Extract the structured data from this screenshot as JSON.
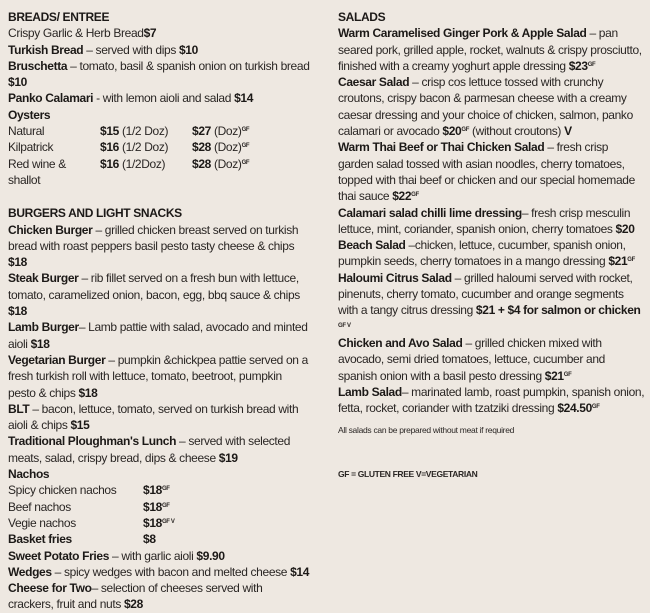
{
  "left": {
    "breads": {
      "heading": "BREADS/ ENTREE",
      "items": [
        {
          "name": "",
          "desc": "Crispy Garlic & Herb Bread",
          "price": "$7",
          "tag": ""
        },
        {
          "name": "Turkish Bread",
          "desc": " – served with dips ",
          "price": "$10",
          "tag": ""
        },
        {
          "name": "Bruschetta",
          "desc": " – tomato, basil & spanish onion on turkish bread ",
          "price": "$10",
          "tag": ""
        },
        {
          "name": "Panko Calamari",
          "desc": " - with lemon aioli and salad ",
          "price": "$14",
          "tag": ""
        }
      ],
      "oysters": {
        "heading": "Oysters",
        "rows": [
          {
            "name": "Natural",
            "half_price": "$15",
            "half_unit": " (1/2 Doz)",
            "doz_price": "$27",
            "doz_unit": " (Doz)",
            "tag": "GF"
          },
          {
            "name": "Kilpatrick",
            "half_price": "$16",
            "half_unit": " (1/2 Doz)",
            "doz_price": "$28",
            "doz_unit": " (Doz)",
            "tag": "GF"
          },
          {
            "name": "Red wine & shallot",
            "half_price": "$16",
            "half_unit": " (1/2Doz)",
            "doz_price": "$28",
            "doz_unit": " (Doz)",
            "tag": "GF"
          }
        ]
      }
    },
    "burgers": {
      "heading": "BURGERS AND LIGHT SNACKS",
      "items": [
        {
          "name": "Chicken Burger",
          "desc": " – grilled chicken breast served on turkish bread with roast peppers basil pesto tasty cheese & chips ",
          "price": "$18",
          "tag": ""
        },
        {
          "name": "Steak Burger",
          "desc": " – rib fillet served on a fresh bun with lettuce, tomato, caramelized onion, bacon, egg, bbq sauce & chips ",
          "price": "$18",
          "tag": ""
        },
        {
          "name": "Lamb Burger",
          "desc": "– Lamb pattie with salad, avocado and minted aioli  ",
          "price": "$18",
          "tag": ""
        },
        {
          "name": "Vegetarian Burger",
          "desc": " – pumpkin &chickpea pattie served on a fresh turkish roll with lettuce, tomato, beetroot, pumpkin pesto & chips ",
          "price": "$18",
          "tag": ""
        },
        {
          "name": "BLT",
          "desc": " – bacon, lettuce, tomato, served on turkish bread with aioli & chips ",
          "price": "$15",
          "tag": ""
        },
        {
          "name": "Traditional Ploughman's Lunch",
          "desc": " – served with selected meats, salad, crispy bread, dips & cheese  ",
          "price": "$19",
          "tag": ""
        }
      ],
      "nachos": {
        "heading": "Nachos",
        "rows": [
          {
            "name": "Spicy chicken nachos",
            "price": "$18",
            "tag": "GF"
          },
          {
            "name": "Beef nachos",
            "price": "$18",
            "tag": "GF"
          },
          {
            "name": "Vegie nachos",
            "price": "$18",
            "tag": "GF V"
          }
        ]
      },
      "basket": {
        "name": "Basket fries",
        "price": "$8"
      },
      "items2": [
        {
          "name": "Sweet Potato Fries",
          "desc": " – with garlic aioli  ",
          "price": "$9.90",
          "tag": ""
        },
        {
          "name": "Wedges",
          "desc": " – spicy wedges with bacon and melted cheese ",
          "price": "$14",
          "tag": ""
        },
        {
          "name": "Cheese for Two",
          "desc": "– selection of cheeses served with crackers, fruit and nuts ",
          "price": "$28",
          "tag": ""
        }
      ]
    }
  },
  "right": {
    "heading": "SALADS",
    "items": [
      {
        "name": "Warm Caramelised Ginger Pork & Apple Salad",
        "desc": " – pan seared pork, grilled apple, rocket, walnuts & crispy prosciutto, finished with a creamy yoghurt apple dressing ",
        "price": "$23",
        "tag": "GF"
      },
      {
        "name": "Caesar Salad",
        "desc": " – crisp cos lettuce tossed with crunchy croutons, crispy bacon & parmesan cheese with a creamy caesar dressing and your choice of chicken, salmon, panko calamari or avocado ",
        "price": "$20",
        "tag": "GF",
        "extra": " (without croutons) ",
        "extra_bold": "V"
      },
      {
        "name": "Warm Thai Beef or Thai Chicken Salad",
        "desc": " – fresh crisp garden salad tossed with asian noodles, cherry tomatoes, topped with thai beef or chicken and our special homemade thai sauce ",
        "price": "$22",
        "tag": "GF"
      },
      {
        "name": "Calamari salad chilli lime dressing",
        "desc": "– fresh crisp mesculin lettuce, mint, coriander, spanish onion, cherry tomatoes ",
        "price": "$20",
        "tag": ""
      },
      {
        "name": "Beach Salad",
        "desc": " –chicken, lettuce, cucumber, spanish onion, pumpkin seeds, cherry tomatoes in a mango dressing ",
        "price": "$21",
        "tag": "GF"
      },
      {
        "name": "Haloumi Citrus Salad",
        "desc": " – grilled haloumi served with rocket, pinenuts, cherry tomato, cucumber and orange segments with a tangy citrus dressing ",
        "price": "$21 + $4 for salmon or chicken ",
        "tag": "GF V"
      },
      {
        "name": "Chicken and Avo Salad",
        "desc": " – grilled chicken mixed with avocado, semi dried tomatoes, lettuce, cucumber and spanish onion with a basil pesto dressing ",
        "price": "$21",
        "tag": "GF"
      },
      {
        "name": "Lamb Salad",
        "desc": "– marinated lamb, roast pumpkin, spanish onion, fetta, rocket, coriander with tzatziki dressing ",
        "price": "$24.50",
        "tag": "GF"
      }
    ],
    "note": "All salads can be prepared without meat if required",
    "legend": "GF = GLUTEN FREE V=VEGETARIAN"
  }
}
